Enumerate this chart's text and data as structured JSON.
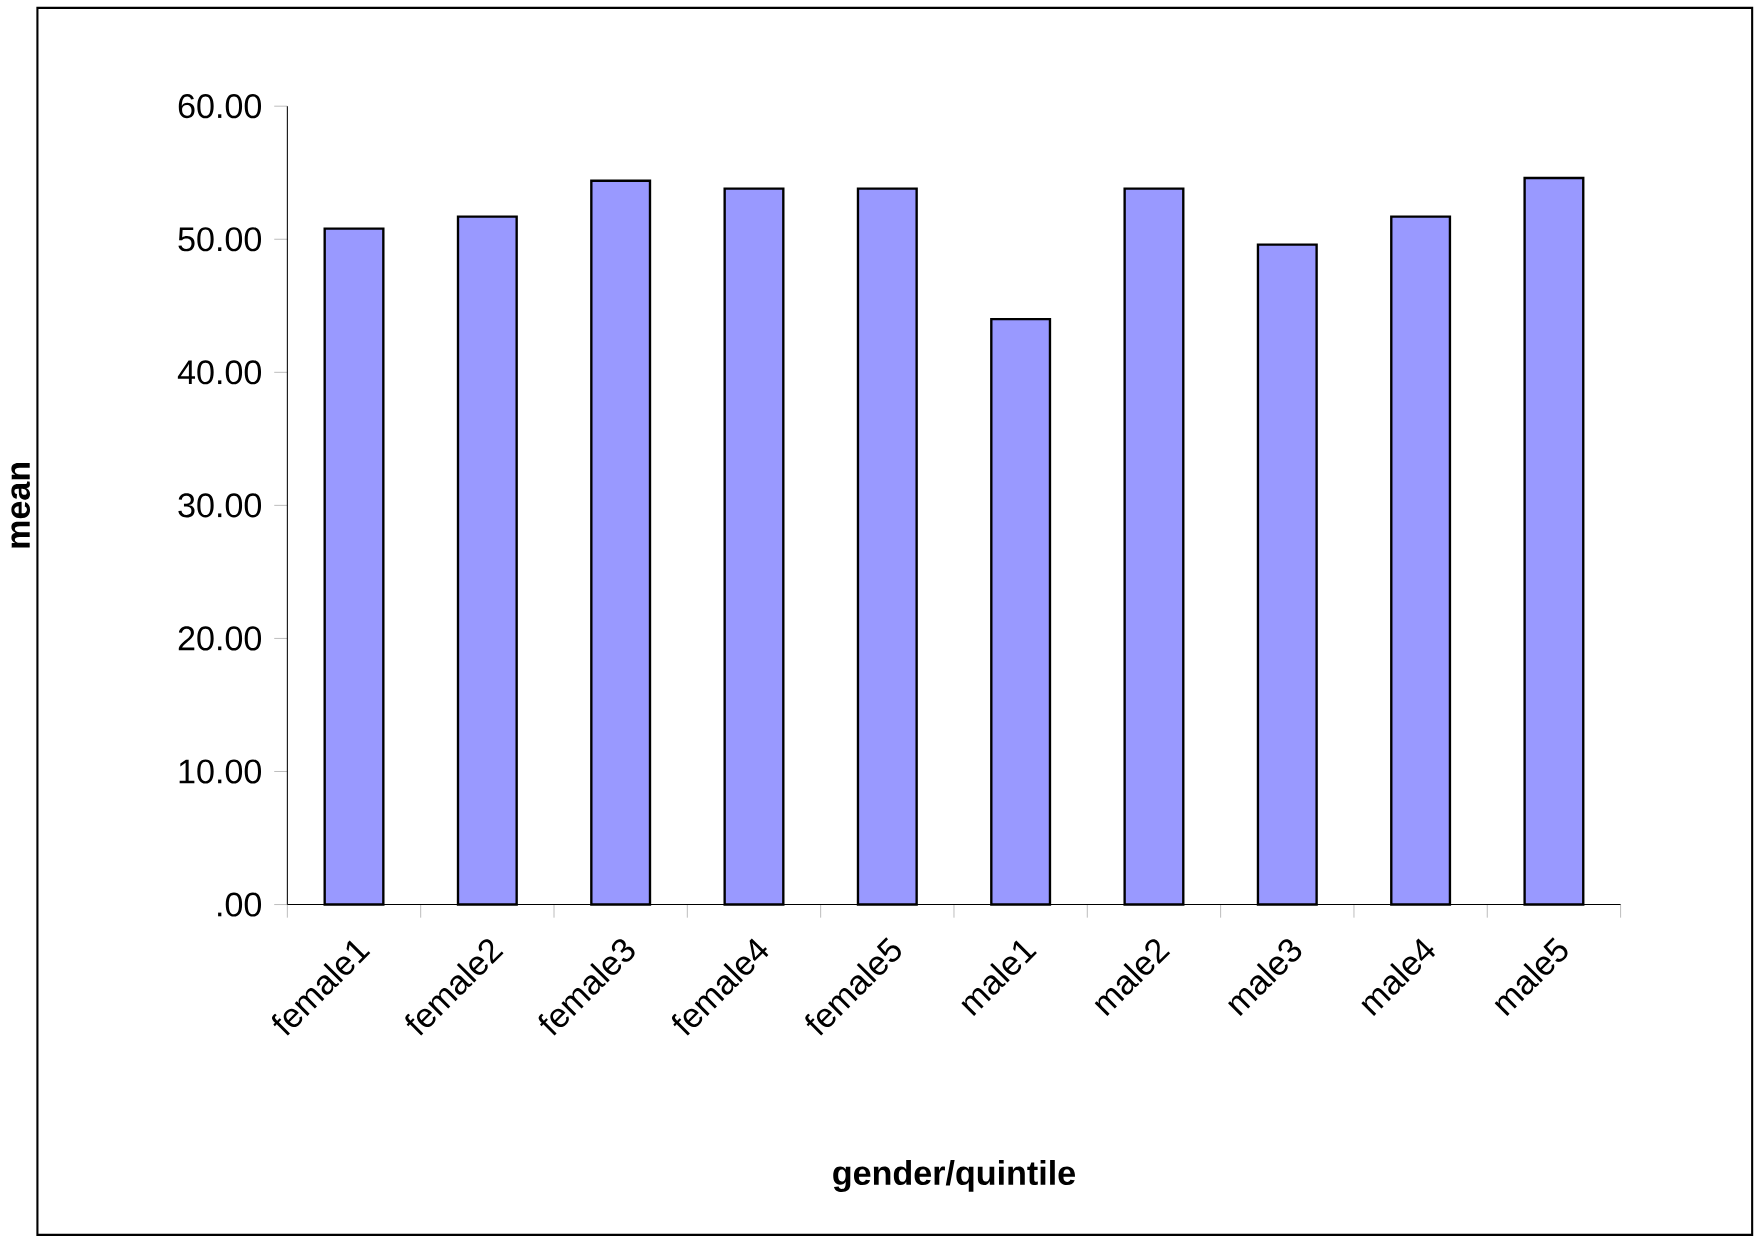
{
  "chart_data": {
    "type": "bar",
    "xlabel": "gender/quintile",
    "ylabel": "mean",
    "categories": [
      "female1",
      "female2",
      "female3",
      "female4",
      "female5",
      "male1",
      "male2",
      "male3",
      "male4",
      "male5"
    ],
    "values": [
      50.8,
      51.7,
      54.4,
      53.8,
      53.8,
      44.0,
      53.8,
      49.6,
      51.7,
      54.6
    ],
    "color": "#9999ff",
    "ylim": [
      0,
      60
    ],
    "yticks": [
      {
        "value": 0,
        "label": ".00"
      },
      {
        "value": 10,
        "label": "10.00"
      },
      {
        "value": 20,
        "label": "20.00"
      },
      {
        "value": 30,
        "label": "30.00"
      },
      {
        "value": 40,
        "label": "40.00"
      },
      {
        "value": 50,
        "label": "50.00"
      },
      {
        "value": 60,
        "label": "60.00"
      }
    ]
  }
}
